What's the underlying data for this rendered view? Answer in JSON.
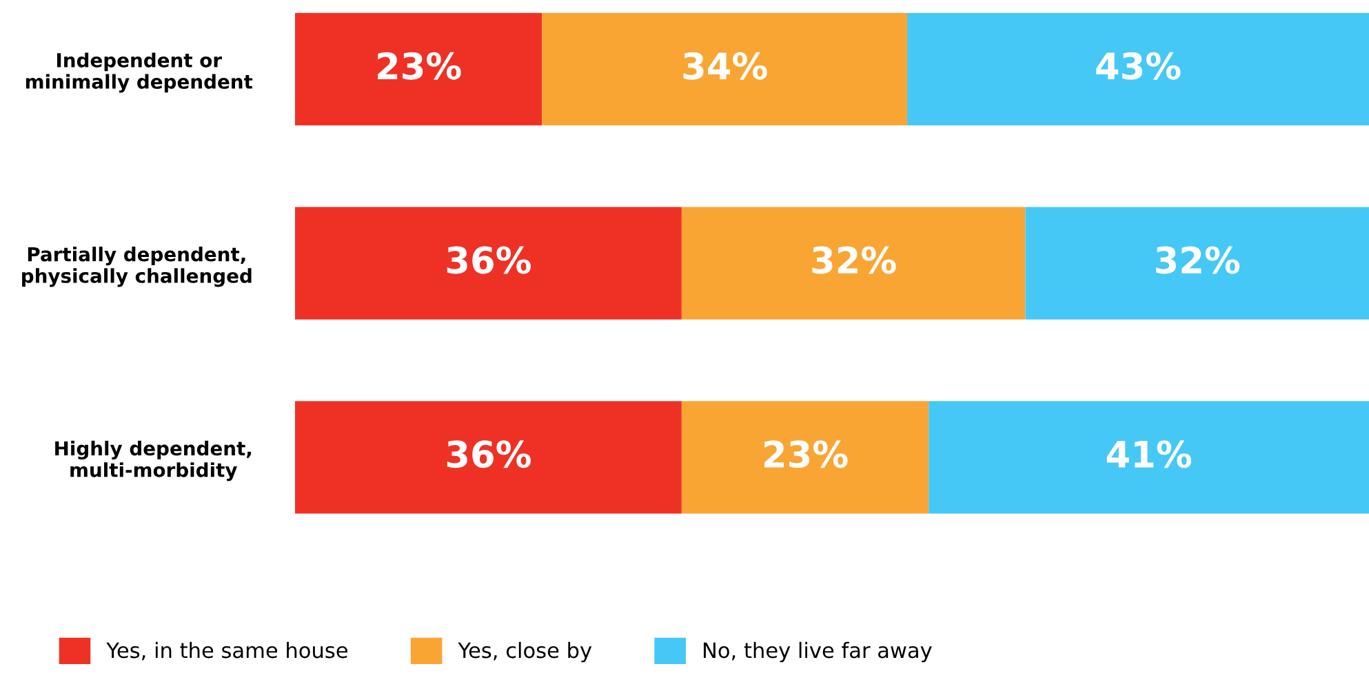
{
  "chart_data": {
    "type": "bar",
    "orientation": "horizontal",
    "stacked": true,
    "legend": "bottom",
    "grid": false,
    "tick_labels": "y",
    "categories": [
      "Independent or\nminimally dependent",
      "Partially dependent,\nphysically challenged",
      "Highly dependent,\nmulti-morbidity"
    ],
    "series": [
      {
        "name": "Yes, in the same house",
        "color": "#ef3125",
        "values": [
          23,
          36,
          36
        ],
        "value_labels": [
          "23%",
          "36%",
          "36%"
        ]
      },
      {
        "name": "Yes, close by",
        "color": "#f9a533",
        "values": [
          34,
          32,
          23
        ],
        "value_labels": [
          "34%",
          "32%",
          "23%"
        ]
      },
      {
        "name": "No, they live far away",
        "color": "#45c8f5",
        "values": [
          43,
          32,
          41
        ],
        "value_labels": [
          "43%",
          "32%",
          "41%"
        ]
      }
    ]
  }
}
